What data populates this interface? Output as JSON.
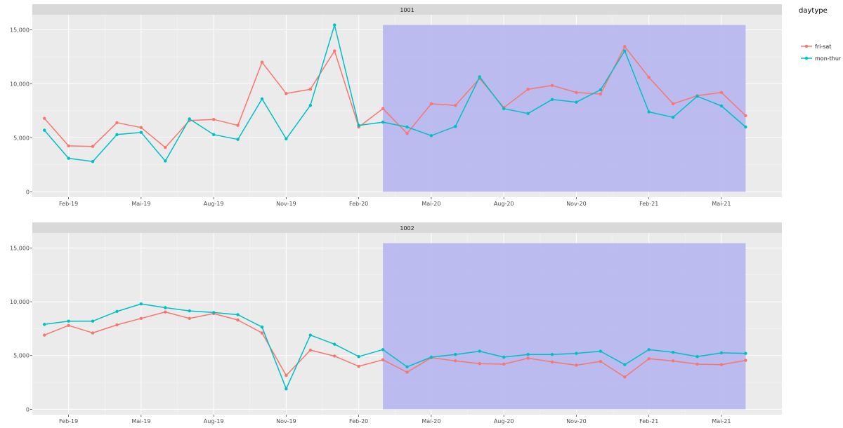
{
  "chart_data": {
    "type": "line",
    "legend_title": "daytype",
    "legend_position": "right",
    "x_tick_labels": [
      "Feb-19",
      "Mai-19",
      "Aug-19",
      "Nov-19",
      "Feb-20",
      "Mai-20",
      "Aug-20",
      "Nov-20",
      "Feb-21",
      "Mai-21"
    ],
    "x_tick_index": [
      1,
      4,
      7,
      10,
      13,
      16,
      19,
      22,
      25,
      28
    ],
    "y_ticks": [
      0,
      5000,
      10000,
      15000
    ],
    "y_tick_labels": [
      "0",
      "5,000",
      "10,000",
      "15,000"
    ],
    "ylim": [
      -500,
      16400
    ],
    "x_range_index": [
      -0.5,
      30.5
    ],
    "shaded_region": {
      "from_index": 14,
      "to_index": 29,
      "color": "#b8b8f0"
    },
    "colors": {
      "fri-sat": "#f8766d",
      "mon-thur": "#00bfc4",
      "panel_bg": "#ebebeb",
      "strip_bg": "#d9d9d9",
      "grid": "#ffffff"
    },
    "panels": [
      {
        "label": "1001",
        "series": [
          {
            "name": "fri-sat",
            "values": [
              6800,
              4250,
              4200,
              6400,
              5950,
              4100,
              6600,
              6700,
              6150,
              12000,
              9100,
              9500,
              13050,
              6000,
              7700,
              5400,
              8150,
              8000,
              10500,
              7800,
              9500,
              9850,
              9200,
              9050,
              13450,
              10600,
              8150,
              8900,
              9200,
              7050
            ]
          },
          {
            "name": "mon-thur",
            "values": [
              5700,
              3100,
              2800,
              5300,
              5500,
              2850,
              6750,
              5300,
              4850,
              8600,
              4900,
              8000,
              15450,
              6150,
              6450,
              6000,
              5200,
              6050,
              10650,
              7700,
              7250,
              8550,
              8300,
              9450,
              13050,
              7400,
              6900,
              8850,
              7950,
              6000
            ]
          }
        ]
      },
      {
        "label": "1002",
        "series": [
          {
            "name": "fri-sat",
            "values": [
              6900,
              7800,
              7100,
              7850,
              8450,
              9050,
              8450,
              8900,
              8300,
              7100,
              3150,
              5500,
              4950,
              4000,
              4600,
              3450,
              4800,
              4500,
              4250,
              4200,
              4750,
              4400,
              4100,
              4450,
              3000,
              4700,
              4500,
              4200,
              4150,
              4550
            ]
          },
          {
            "name": "mon-thur",
            "values": [
              7900,
              8200,
              8200,
              9100,
              9800,
              9450,
              9150,
              9000,
              8800,
              7650,
              1900,
              6900,
              6050,
              4900,
              5550,
              3950,
              4850,
              5100,
              5400,
              4850,
              5100,
              5100,
              5200,
              5400,
              4150,
              5550,
              5300,
              4900,
              5250,
              5200
            ]
          }
        ]
      }
    ]
  }
}
